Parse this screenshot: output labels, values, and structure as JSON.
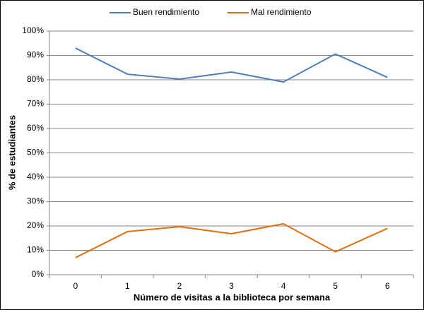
{
  "chart_data": {
    "type": "line",
    "x_label": "Número de visitas a la biblioteca por semana",
    "y_label": "% de estudiantes",
    "categories": [
      "0",
      "1",
      "2",
      "3",
      "4",
      "5",
      "6"
    ],
    "series": [
      {
        "name": "Buen rendimiento",
        "color": "#4a7ebb",
        "values": [
          93,
          82.3,
          80.3,
          83.2,
          79.1,
          90.6,
          81
        ]
      },
      {
        "name": "Mal rendimiento",
        "color": "#e46c0a",
        "values": [
          7,
          17.7,
          19.7,
          16.8,
          20.9,
          9.4,
          19
        ]
      }
    ],
    "ylim": [
      0,
      100
    ],
    "yticks": [
      {
        "value": 0,
        "label": "0%"
      },
      {
        "value": 10,
        "label": "10%"
      },
      {
        "value": 20,
        "label": "20%"
      },
      {
        "value": 30,
        "label": "30%"
      },
      {
        "value": 40,
        "label": "40%"
      },
      {
        "value": 50,
        "label": "50%"
      },
      {
        "value": 60,
        "label": "60%"
      },
      {
        "value": 70,
        "label": "70%"
      },
      {
        "value": 80,
        "label": "80%"
      },
      {
        "value": 90,
        "label": "90%"
      },
      {
        "value": 100,
        "label": "100%"
      }
    ],
    "grid": true,
    "legend": "top"
  }
}
